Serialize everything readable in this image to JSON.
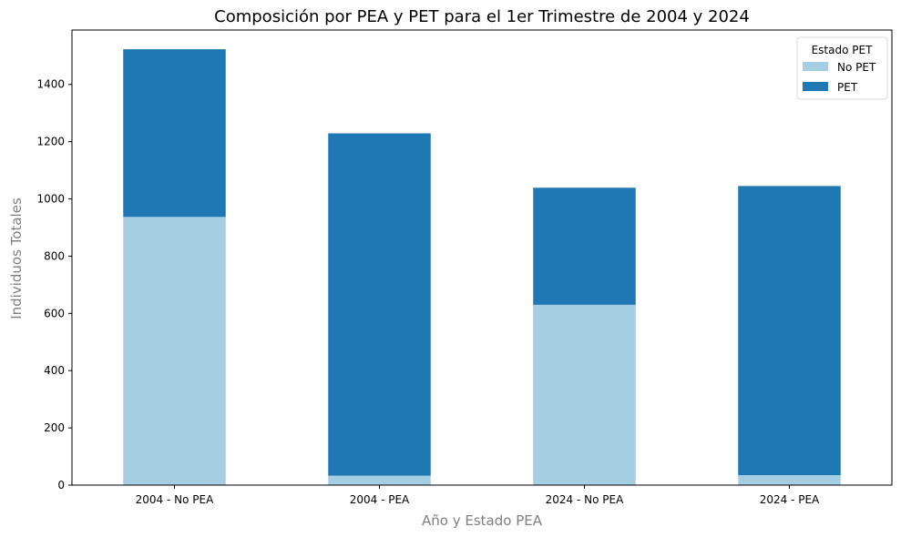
{
  "chart_data": {
    "type": "bar",
    "stacked": true,
    "title": "Composición por PEA y PET para el 1er Trimestre de 2004 y 2024",
    "xlabel": "Año y Estado PEA",
    "ylabel": "Individuos Totales",
    "categories": [
      "2004 - No PEA",
      "2004 - PEA",
      "2024 - No PEA",
      "2024 - PEA"
    ],
    "series": [
      {
        "name": "No PET",
        "color": "#a6cee3",
        "values": [
          937,
          33,
          630,
          35
        ]
      },
      {
        "name": "PET",
        "color": "#1f78b4",
        "values": [
          586,
          1196,
          409,
          1010
        ]
      }
    ],
    "ylim": [
      0,
      1590
    ],
    "yticks": [
      0,
      200,
      400,
      600,
      800,
      1000,
      1200,
      1400
    ],
    "grid": false,
    "legend": {
      "title": "Estado PET",
      "placement": "top-right"
    }
  }
}
